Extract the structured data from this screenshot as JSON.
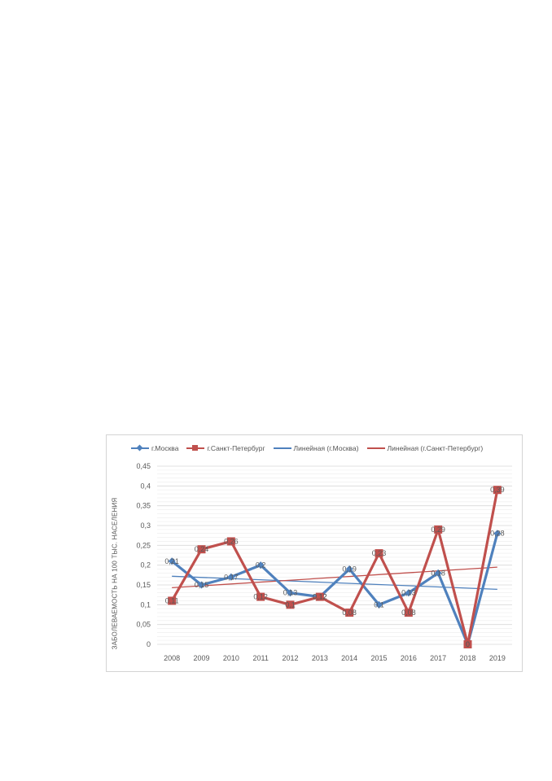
{
  "chart_data": {
    "type": "line",
    "title": "",
    "xlabel": "",
    "ylabel": "ЗАБОЛЕВАЕМОСТЬ НА 100 ТЫС. НАСЕЛЕНИЯ",
    "categories": [
      "2008",
      "2009",
      "2010",
      "2011",
      "2012",
      "2013",
      "2014",
      "2015",
      "2016",
      "2017",
      "2018",
      "2019"
    ],
    "ylim": [
      0,
      0.45
    ],
    "yticks": [
      "0",
      "0,05",
      "0,1",
      "0,15",
      "0,2",
      "0,25",
      "0,3",
      "0,35",
      "0,4",
      "0,45"
    ],
    "grid": true,
    "legend_position": "top",
    "series": [
      {
        "name": "г.Москва",
        "color": "#4f81bd",
        "marker": "diamond",
        "values": [
          0.21,
          0.15,
          0.17,
          0.2,
          0.13,
          0.12,
          0.19,
          0.1,
          0.13,
          0.18,
          0,
          0.28
        ],
        "labels": [
          "0,21",
          "0,15",
          "0,17",
          "0,2",
          "0,13",
          "0,12",
          "0,19",
          "0,1",
          "0,13",
          "0,18",
          "0",
          "0,28"
        ]
      },
      {
        "name": "г.Санкт-Петербург",
        "color": "#c0504d",
        "marker": "square",
        "values": [
          0.11,
          0.24,
          0.26,
          0.12,
          0.1,
          0.12,
          0.08,
          0.23,
          0.08,
          0.29,
          0,
          0.39
        ],
        "labels": [
          "0,11",
          "0,24",
          "0,26",
          "0,12",
          "0,1",
          "0,12",
          "0,08",
          "0,23",
          "0,08",
          "0,29",
          "0",
          "0,39"
        ]
      }
    ],
    "trendlines": [
      {
        "name": "Линейная (г.Москва)",
        "color": "#4f81bd",
        "start": 0.172,
        "end": 0.139
      },
      {
        "name": "Линейная (г.Санкт-Петербург)",
        "color": "#c0504d",
        "start": 0.143,
        "end": 0.195
      }
    ]
  }
}
